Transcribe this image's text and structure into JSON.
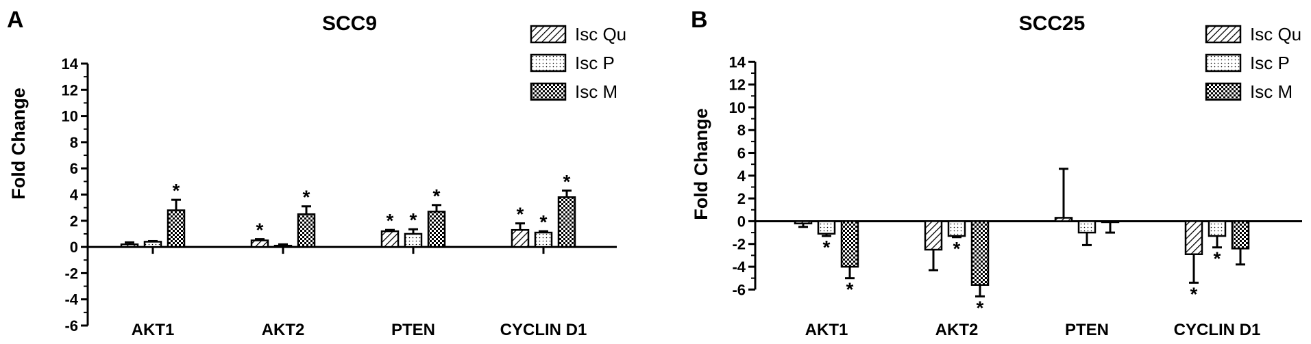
{
  "chart_data": [
    {
      "panel": "A",
      "type": "bar",
      "title": "SCC9",
      "ylabel": "Fold Change",
      "xlabel": "",
      "ylim": [
        -6,
        14
      ],
      "yticks": [
        -6,
        -4,
        -2,
        0,
        2,
        4,
        6,
        8,
        10,
        12,
        14
      ],
      "categories": [
        "AKT1",
        "AKT2",
        "PTEN",
        "CYCLIN D1"
      ],
      "legend_position": "top-right",
      "series": [
        {
          "name": "Isc Qu",
          "pattern": "hatch",
          "values": [
            0.2,
            0.5,
            1.2,
            1.3
          ],
          "errors": [
            0.15,
            0.1,
            0.1,
            0.5
          ],
          "significant": [
            false,
            true,
            true,
            true
          ]
        },
        {
          "name": "Isc P",
          "pattern": "dots",
          "values": [
            0.4,
            0.1,
            1.0,
            1.1
          ],
          "errors": [
            0.05,
            0.1,
            0.35,
            0.1
          ],
          "significant": [
            false,
            false,
            true,
            true
          ]
        },
        {
          "name": "Isc M",
          "pattern": "check",
          "values": [
            2.8,
            2.5,
            2.7,
            3.8
          ],
          "errors": [
            0.8,
            0.6,
            0.5,
            0.5
          ],
          "significant": [
            true,
            true,
            true,
            true
          ]
        }
      ]
    },
    {
      "panel": "B",
      "type": "bar",
      "title": "SCC25",
      "ylabel": "Fold Change",
      "xlabel": "",
      "ylim": [
        -7,
        14.5
      ],
      "yticks": [
        -6,
        -4,
        -2,
        0,
        2,
        4,
        6,
        8,
        10,
        12,
        14
      ],
      "categories": [
        "AKT1",
        "AKT2",
        "PTEN",
        "CYCLIN D1"
      ],
      "legend_position": "top-right",
      "series": [
        {
          "name": "Isc Qu",
          "pattern": "hatch",
          "values": [
            -0.2,
            -2.5,
            0.3,
            -2.9
          ],
          "errors": [
            0.3,
            1.8,
            4.3,
            2.5
          ],
          "significant": [
            false,
            false,
            false,
            true
          ]
        },
        {
          "name": "Isc P",
          "pattern": "dots",
          "values": [
            -1.1,
            -1.3,
            -1.0,
            -1.3
          ],
          "errors": [
            0.2,
            0.1,
            1.1,
            1.0
          ],
          "significant": [
            true,
            true,
            false,
            true
          ]
        },
        {
          "name": "Isc M",
          "pattern": "check",
          "values": [
            -4.0,
            -5.6,
            -0.05,
            -2.4
          ],
          "errors": [
            1.0,
            1.0,
            0.95,
            1.4
          ],
          "significant": [
            true,
            true,
            false,
            false
          ]
        }
      ]
    }
  ],
  "significance_marker": "*"
}
